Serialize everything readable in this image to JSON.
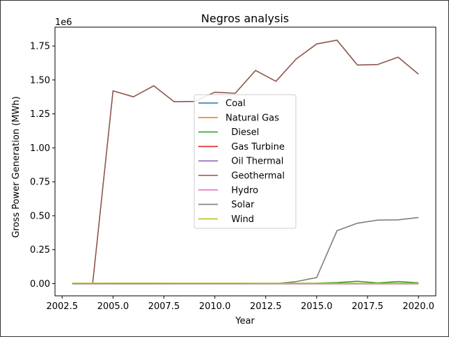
{
  "chart_data": {
    "type": "line",
    "title": "Negros analysis",
    "xlabel": "Year",
    "ylabel": "Gross Power Generation (MWh)",
    "y_offset_label": "1e6",
    "xlim": [
      2002.15,
      2020.85
    ],
    "ylim": [
      -0.09,
      1.889
    ],
    "y_scale_note": "y values in units of 1e6 MWh",
    "x_ticks": [
      2002.5,
      2005.0,
      2007.5,
      2010.0,
      2012.5,
      2015.0,
      2017.5,
      2020.0
    ],
    "x_tick_labels": [
      "2002.5",
      "2005.0",
      "2007.5",
      "2010.0",
      "2012.5",
      "2015.0",
      "2017.5",
      "2020.0"
    ],
    "y_ticks": [
      0.0,
      0.25,
      0.5,
      0.75,
      1.0,
      1.25,
      1.5,
      1.75
    ],
    "y_tick_labels": [
      "0.00",
      "0.25",
      "0.50",
      "0.75",
      "1.00",
      "1.25",
      "1.50",
      "1.75"
    ],
    "grid": false,
    "legend_position": "center",
    "x": [
      2003,
      2004,
      2005,
      2006,
      2007,
      2008,
      2009,
      2010,
      2011,
      2012,
      2013,
      2014,
      2015,
      2016,
      2017,
      2018,
      2019,
      2020
    ],
    "series": [
      {
        "name": "Coal",
        "color": "#1f77b4",
        "values": [
          0,
          0,
          0,
          0,
          0,
          0,
          0,
          0,
          0,
          0,
          0,
          0,
          0,
          0,
          0,
          0,
          0,
          0
        ]
      },
      {
        "name": "Natural Gas",
        "color": "#ff7f0e",
        "values": [
          0,
          0,
          0,
          0,
          0,
          0,
          0,
          0,
          0,
          0,
          0,
          0,
          0,
          0,
          0,
          0,
          0,
          0
        ]
      },
      {
        "name": "  Diesel",
        "color": "#2ca02c",
        "values": [
          0,
          0,
          0.002,
          0.002,
          0.002,
          0.002,
          0.002,
          0.002,
          0.002,
          0.002,
          0.002,
          0.002,
          0.003,
          0.008,
          0.017,
          0.005,
          0.015,
          0.006
        ]
      },
      {
        "name": "  Gas Turbine",
        "color": "#d62728",
        "values": [
          0,
          0,
          0,
          0,
          0,
          0,
          0,
          0,
          0,
          0,
          0,
          0,
          0,
          0,
          0,
          0,
          0,
          0
        ]
      },
      {
        "name": "  Oil Thermal",
        "color": "#9467bd",
        "values": [
          0,
          0,
          0,
          0,
          0,
          0,
          0,
          0,
          0,
          0,
          0,
          0,
          0,
          0,
          0,
          0,
          0,
          0
        ]
      },
      {
        "name": "  Geothermal",
        "color": "#8c564b",
        "values": [
          0,
          0,
          1.42,
          1.376,
          1.457,
          1.34,
          1.342,
          1.41,
          1.402,
          1.57,
          1.49,
          1.655,
          1.765,
          1.793,
          1.61,
          1.614,
          1.668,
          1.543
        ]
      },
      {
        "name": "  Hydro",
        "color": "#e377c2",
        "values": [
          0.001,
          0.001,
          0.001,
          0.001,
          0.001,
          0.001,
          0.001,
          0.001,
          0.001,
          0.001,
          0.001,
          0.001,
          0.001,
          0.001,
          0.001,
          0.001,
          0.001,
          0.001
        ]
      },
      {
        "name": "  Solar",
        "color": "#7f7f7f",
        "values": [
          0,
          0,
          0,
          0,
          0,
          0,
          0,
          0,
          0,
          0,
          0,
          0.015,
          0.045,
          0.39,
          0.445,
          0.468,
          0.47,
          0.487
        ]
      },
      {
        "name": "  Wind",
        "color": "#bcbd22",
        "values": [
          0.003,
          0.003,
          0.004,
          0.004,
          0.004,
          0.003,
          0.003,
          0.003,
          0.003,
          0.002,
          0.002,
          0.002,
          0.002,
          0.002,
          0.002,
          0.002,
          0.002,
          0.002
        ]
      }
    ]
  }
}
